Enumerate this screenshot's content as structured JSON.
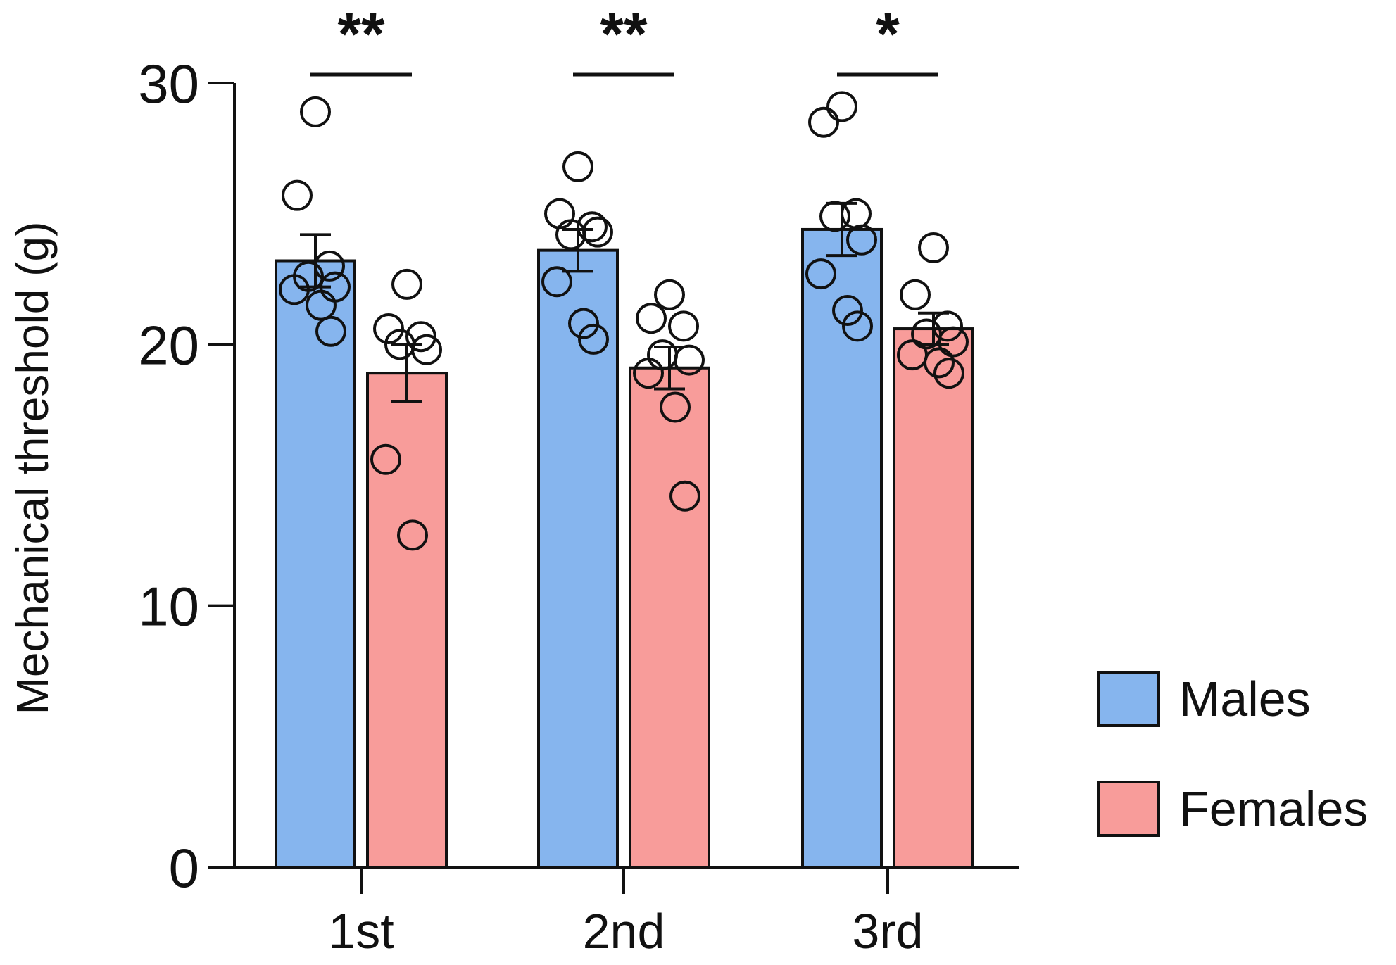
{
  "chart_data": {
    "type": "bar",
    "categories": [
      "1st",
      "2nd",
      "3rd"
    ],
    "ylabel": "Mechanical threshold (g)",
    "xlabel": "",
    "ylim": [
      0,
      30
    ],
    "yticks": [
      0,
      10,
      20,
      30
    ],
    "grid": false,
    "legend_position": "right",
    "series": [
      {
        "name": "Males",
        "color": "#86b5ee",
        "values": [
          23.2,
          23.6,
          24.4
        ],
        "sem": [
          1.0,
          0.8,
          1.0
        ],
        "points": [
          [
            28.9,
            25.7,
            23.0,
            22.6,
            22.2,
            22.1,
            21.5,
            20.5
          ],
          [
            26.8,
            25.0,
            24.5,
            24.2,
            24.3,
            22.4,
            20.8,
            20.2
          ],
          [
            29.1,
            28.5,
            25.0,
            24.9,
            24.0,
            22.7,
            21.3,
            20.7
          ]
        ]
      },
      {
        "name": "Females",
        "color": "#f89c9a",
        "values": [
          18.9,
          19.1,
          20.6
        ],
        "sem": [
          1.1,
          0.8,
          0.6
        ],
        "points": [
          [
            22.3,
            20.6,
            20.3,
            20.0,
            19.8,
            15.6,
            12.7
          ],
          [
            21.9,
            21.0,
            20.7,
            19.6,
            19.4,
            18.9,
            17.6,
            14.2
          ],
          [
            23.7,
            21.9,
            20.7,
            20.4,
            20.1,
            19.6,
            19.3,
            18.9
          ]
        ]
      }
    ],
    "significance": [
      "**",
      "**",
      "*"
    ]
  }
}
